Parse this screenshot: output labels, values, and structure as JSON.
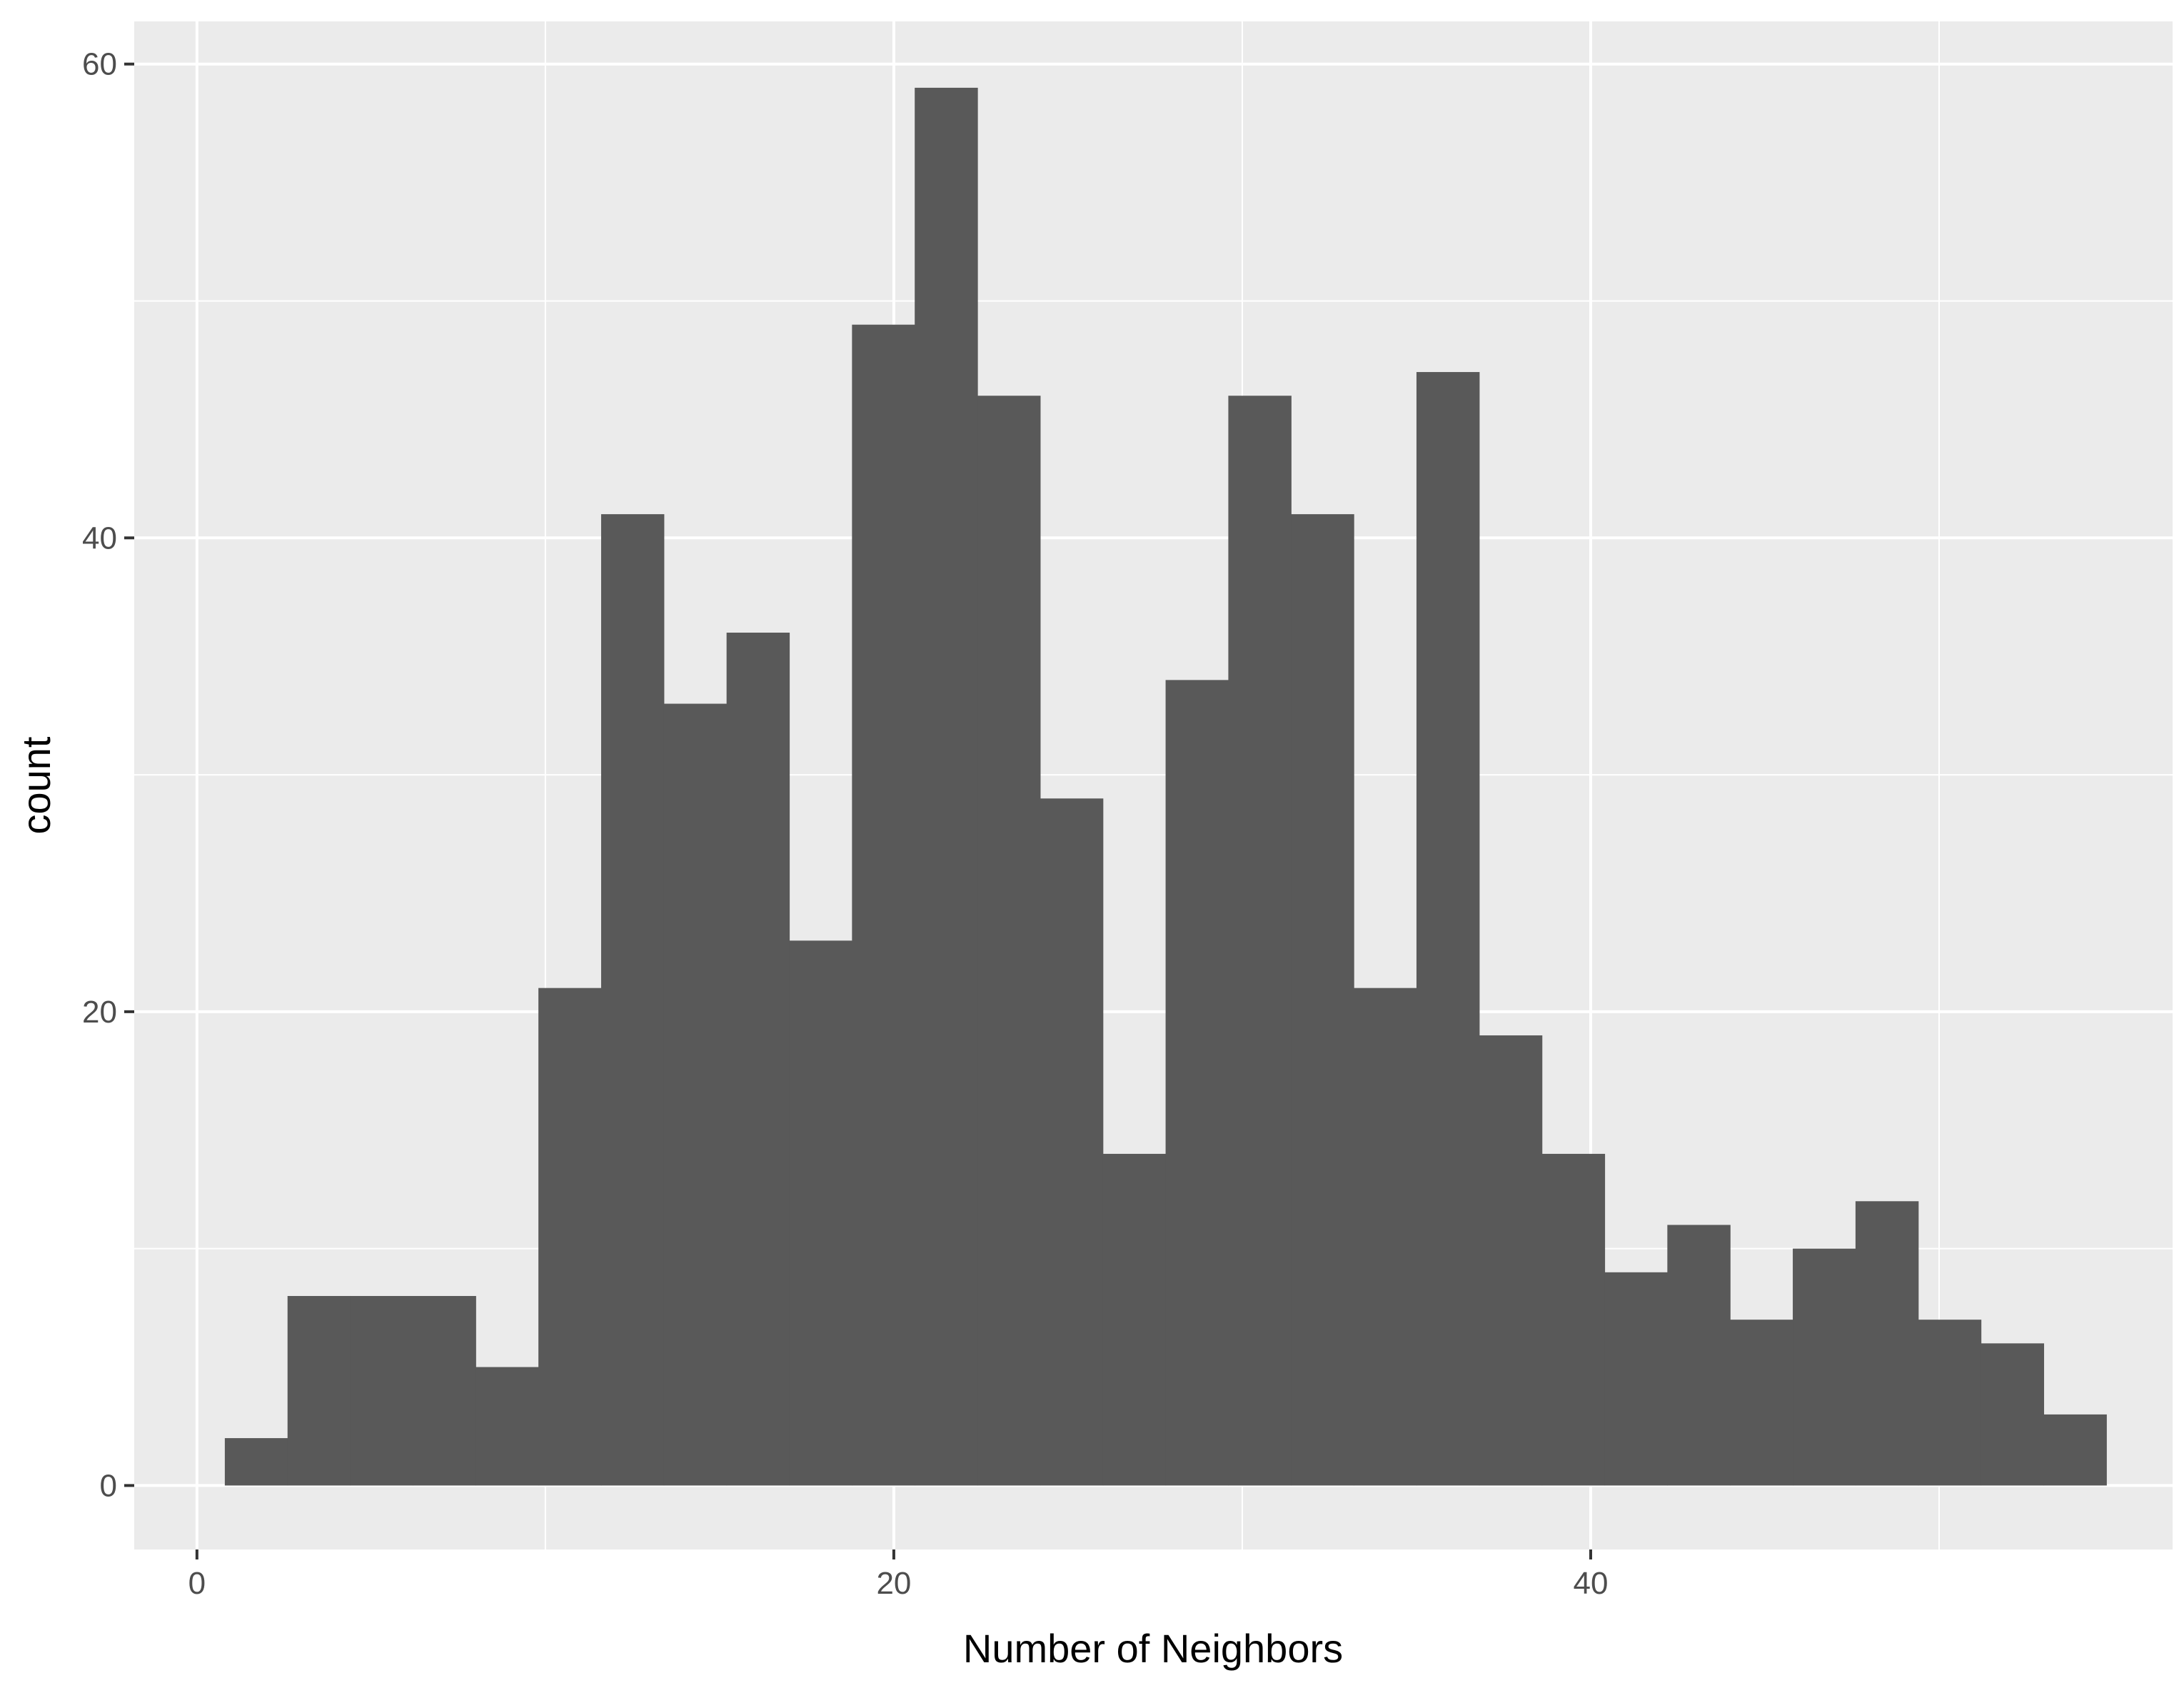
{
  "chart_data": {
    "type": "bar",
    "subtype": "histogram",
    "title": "",
    "xlabel": "Number of Neighbors",
    "ylabel": "count",
    "xlim": [
      -1.8,
      56.7
    ],
    "ylim": [
      -2.7,
      61.8
    ],
    "x_ticks": [
      0,
      20,
      40
    ],
    "y_ticks": [
      0,
      20,
      40,
      60
    ],
    "x_tick_labels": [
      "0",
      "20",
      "40"
    ],
    "y_tick_labels": [
      "0",
      "20",
      "40",
      "60"
    ],
    "grid": true,
    "legend": "none",
    "colors": {
      "bar": "#595959",
      "panel": "#ebebeb",
      "grid": "#ffffff"
    },
    "bins": [
      {
        "x0": 0.8,
        "x1": 2.6,
        "count": 2
      },
      {
        "x0": 2.6,
        "x1": 4.4,
        "count": 8
      },
      {
        "x0": 4.4,
        "x1": 6.2,
        "count": 8
      },
      {
        "x0": 6.2,
        "x1": 8.0,
        "count": 8
      },
      {
        "x0": 8.0,
        "x1": 9.8,
        "count": 5
      },
      {
        "x0": 9.8,
        "x1": 11.6,
        "count": 21
      },
      {
        "x0": 11.6,
        "x1": 13.4,
        "count": 41
      },
      {
        "x0": 13.4,
        "x1": 15.2,
        "count": 33
      },
      {
        "x0": 15.2,
        "x1": 17.0,
        "count": 36
      },
      {
        "x0": 17.0,
        "x1": 18.8,
        "count": 23
      },
      {
        "x0": 18.8,
        "x1": 20.6,
        "count": 49
      },
      {
        "x0": 20.6,
        "x1": 22.4,
        "count": 59
      },
      {
        "x0": 22.4,
        "x1": 24.2,
        "count": 46
      },
      {
        "x0": 24.2,
        "x1": 26.0,
        "count": 29
      },
      {
        "x0": 26.0,
        "x1": 27.8,
        "count": 14
      },
      {
        "x0": 27.8,
        "x1": 29.6,
        "count": 34
      },
      {
        "x0": 29.6,
        "x1": 31.4,
        "count": 46
      },
      {
        "x0": 31.4,
        "x1": 33.2,
        "count": 41
      },
      {
        "x0": 33.2,
        "x1": 35.0,
        "count": 21
      },
      {
        "x0": 35.0,
        "x1": 36.8,
        "count": 47
      },
      {
        "x0": 36.8,
        "x1": 38.6,
        "count": 19
      },
      {
        "x0": 38.6,
        "x1": 40.4,
        "count": 14
      },
      {
        "x0": 40.4,
        "x1": 42.2,
        "count": 9
      },
      {
        "x0": 42.2,
        "x1": 44.0,
        "count": 11
      },
      {
        "x0": 44.0,
        "x1": 45.8,
        "count": 7
      },
      {
        "x0": 45.8,
        "x1": 47.6,
        "count": 10
      },
      {
        "x0": 47.6,
        "x1": 49.4,
        "count": 12
      },
      {
        "x0": 49.4,
        "x1": 51.2,
        "count": 7
      },
      {
        "x0": 51.2,
        "x1": 53.0,
        "count": 6
      },
      {
        "x0": 53.0,
        "x1": 54.8,
        "count": 3
      }
    ]
  }
}
